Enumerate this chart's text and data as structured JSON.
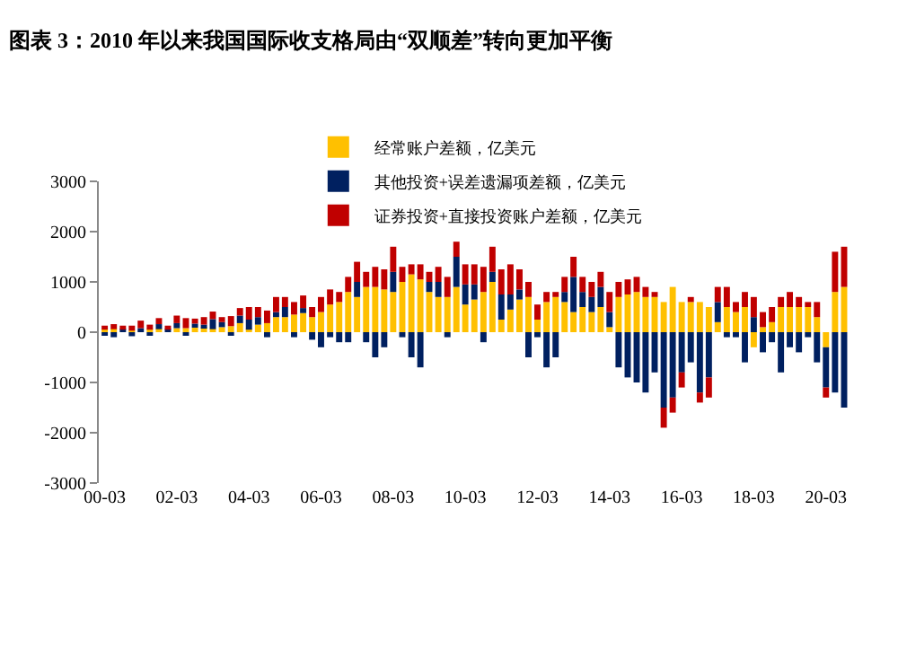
{
  "chart_data": {
    "type": "bar",
    "title": "图表 3：2010 年以来我国国际收支格局由“双顺差”转向更加平衡",
    "stacked": true,
    "x": [
      "2000-03",
      "2000-06",
      "2000-09",
      "2000-12",
      "2001-03",
      "2001-06",
      "2001-09",
      "2001-12",
      "2002-03",
      "2002-06",
      "2002-09",
      "2002-12",
      "2003-03",
      "2003-06",
      "2003-09",
      "2003-12",
      "2004-03",
      "2004-06",
      "2004-09",
      "2004-12",
      "2005-03",
      "2005-06",
      "2005-09",
      "2005-12",
      "2006-03",
      "2006-06",
      "2006-09",
      "2006-12",
      "2007-03",
      "2007-06",
      "2007-09",
      "2007-12",
      "2008-03",
      "2008-06",
      "2008-09",
      "2008-12",
      "2009-03",
      "2009-06",
      "2009-09",
      "2009-12",
      "2010-03",
      "2010-06",
      "2010-09",
      "2010-12",
      "2011-03",
      "2011-06",
      "2011-09",
      "2011-12",
      "2012-03",
      "2012-06",
      "2012-09",
      "2012-12",
      "2013-03",
      "2013-06",
      "2013-09",
      "2013-12",
      "2014-03",
      "2014-06",
      "2014-09",
      "2014-12",
      "2015-03",
      "2015-06",
      "2015-09",
      "2015-12",
      "2016-03",
      "2016-06",
      "2016-09",
      "2016-12",
      "2017-03",
      "2017-06",
      "2017-09",
      "2017-12",
      "2018-03",
      "2018-06",
      "2018-09",
      "2018-12",
      "2019-03",
      "2019-06",
      "2019-09",
      "2019-12",
      "2020-03",
      "2020-06",
      "2020-09"
    ],
    "series": [
      {
        "name": "经常账户差额，亿美元",
        "color": "#ffc000",
        "values": [
          50,
          60,
          null,
          30,
          null,
          50,
          60,
          null,
          80,
          80,
          90,
          100,
          60,
          100,
          120,
          180,
          50,
          150,
          180,
          300,
          300,
          350,
          380,
          300,
          400,
          550,
          600,
          800,
          700,
          900,
          900,
          850,
          800,
          1000,
          1150,
          1050,
          800,
          700,
          700,
          900,
          550,
          650,
          800,
          1000,
          250,
          450,
          650,
          700,
          250,
          600,
          700,
          600,
          400,
          500,
          400,
          500,
          100,
          700,
          750,
          800,
          700,
          700,
          600,
          900,
          600,
          600,
          600,
          500,
          200,
          500,
          400,
          500,
          -300,
          100,
          200,
          500,
          500,
          500,
          500,
          300,
          -300,
          800,
          900
        ]
      },
      {
        "name": "其他投资+误差遗漏项差额，亿美元",
        "color": "#002060",
        "values": [
          -50,
          -100,
          50,
          -80,
          80,
          -50,
          100,
          50,
          100,
          -50,
          80,
          50,
          200,
          100,
          -50,
          150,
          200,
          150,
          -100,
          100,
          200,
          -100,
          100,
          -150,
          -300,
          -100,
          -200,
          -200,
          300,
          -200,
          -500,
          -300,
          400,
          -100,
          -500,
          -700,
          200,
          300,
          -100,
          600,
          400,
          300,
          -200,
          200,
          500,
          300,
          200,
          -500,
          -100,
          -700,
          -500,
          200,
          700,
          300,
          300,
          400,
          300,
          -700,
          -900,
          -1000,
          -1200,
          -800,
          -1500,
          -1300,
          -800,
          -600,
          -1200,
          -900,
          400,
          -100,
          -100,
          -600,
          300,
          -400,
          -200,
          -800,
          -300,
          -400,
          -100,
          -600,
          -800,
          -1200,
          -1500
        ]
      },
      {
        "name": "证券投资+直接投资账户差额，亿美元",
        "color": "#c00000",
        "values": [
          80,
          100,
          80,
          100,
          150,
          100,
          120,
          80,
          150,
          200,
          100,
          150,
          150,
          100,
          200,
          150,
          250,
          200,
          250,
          300,
          200,
          250,
          250,
          200,
          300,
          300,
          200,
          300,
          400,
          300,
          400,
          400,
          500,
          300,
          200,
          300,
          200,
          300,
          400,
          300,
          400,
          400,
          500,
          500,
          500,
          600,
          400,
          300,
          300,
          200,
          100,
          300,
          400,
          300,
          300,
          300,
          400,
          300,
          300,
          300,
          200,
          100,
          -400,
          -300,
          -300,
          100,
          -200,
          -400,
          300,
          400,
          200,
          300,
          400,
          300,
          300,
          200,
          300,
          200,
          100,
          300,
          -200,
          800,
          800
        ]
      }
    ],
    "xlim": [
      "2000-01",
      "2020-12"
    ],
    "xticks": [
      {
        "value": "2000-03",
        "label": "00-03"
      },
      {
        "value": "2002-03",
        "label": "02-03"
      },
      {
        "value": "2004-03",
        "label": "04-03"
      },
      {
        "value": "2006-03",
        "label": "06-03"
      },
      {
        "value": "2008-03",
        "label": "08-03"
      },
      {
        "value": "2010-03",
        "label": "10-03"
      },
      {
        "value": "2012-03",
        "label": "12-03"
      },
      {
        "value": "2014-03",
        "label": "14-03"
      },
      {
        "value": "2016-03",
        "label": "16-03"
      },
      {
        "value": "2018-03",
        "label": "18-03"
      },
      {
        "value": "2020-03",
        "label": "20-03"
      }
    ],
    "ylim": [
      -3000,
      3000
    ],
    "yticks": [
      -3000,
      -2000,
      -1000,
      0,
      1000,
      2000,
      3000
    ],
    "legend": "top left"
  }
}
